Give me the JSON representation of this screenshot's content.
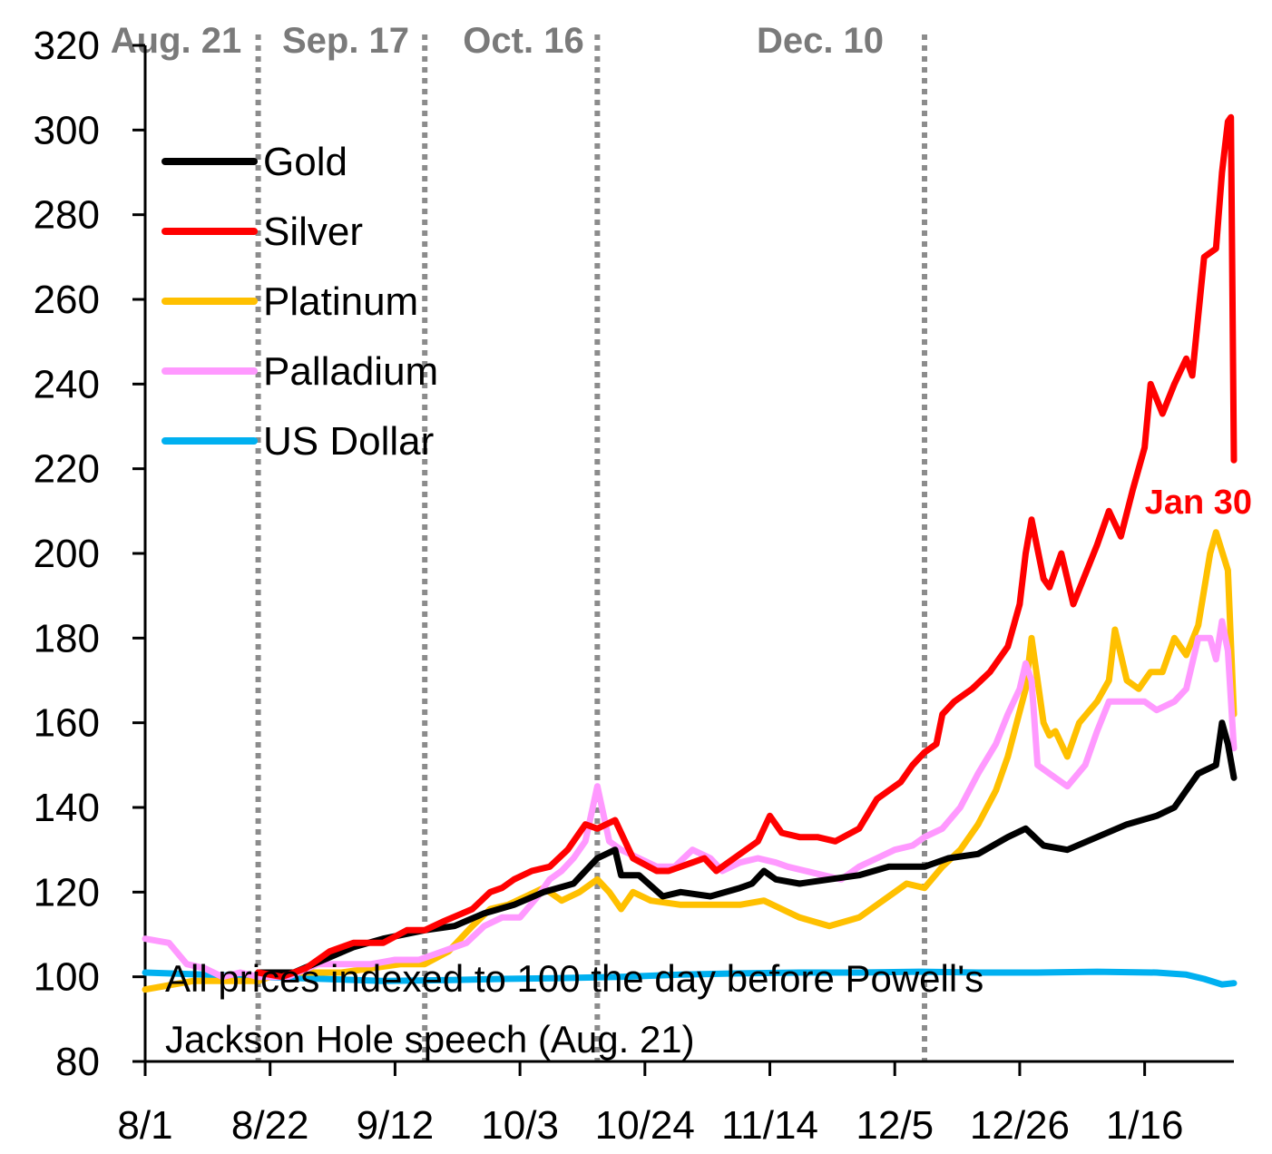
{
  "chart_data": {
    "type": "line",
    "title": "",
    "xlabel": "",
    "ylabel": "",
    "ylim": [
      80,
      320
    ],
    "y_ticks": [
      80,
      100,
      120,
      140,
      160,
      180,
      200,
      220,
      240,
      260,
      280,
      300,
      320
    ],
    "y_tick_labels": [
      "80",
      "100",
      "120",
      "140",
      "160",
      "180",
      "200",
      "220",
      "240",
      "260",
      "280",
      "300",
      "320"
    ],
    "x_range_days": [
      0,
      183
    ],
    "x_ticks": [
      {
        "day": 0,
        "label": "8/1"
      },
      {
        "day": 21,
        "label": "8/22"
      },
      {
        "day": 42,
        "label": "9/12"
      },
      {
        "day": 63,
        "label": "10/3"
      },
      {
        "day": 84,
        "label": "10/24"
      },
      {
        "day": 105,
        "label": "11/14"
      },
      {
        "day": 126,
        "label": "12/5"
      },
      {
        "day": 147,
        "label": "12/26"
      },
      {
        "day": 168,
        "label": "1/16"
      }
    ],
    "event_lines": [
      {
        "day": 19,
        "label": "Aug. 21"
      },
      {
        "day": 47,
        "label": "Sep. 17"
      },
      {
        "day": 76,
        "label": "Oct. 16"
      },
      {
        "day": 131,
        "label": "Dec. 10"
      }
    ],
    "legend": [
      "Gold",
      "Silver",
      "Platinum",
      "Palladium",
      "US Dollar"
    ],
    "note_lines": [
      "All prices indexed to 100 the day before Powell's",
      "Jackson Hole speech (Aug. 21)"
    ],
    "annotation": {
      "text": "Jan 30",
      "series": "Silver",
      "day": 182
    },
    "series": [
      {
        "name": "Gold",
        "color": "#000000",
        "points": [
          [
            19,
            101
          ],
          [
            25,
            101
          ],
          [
            30,
            104
          ],
          [
            35,
            107
          ],
          [
            40,
            109
          ],
          [
            47,
            111
          ],
          [
            52,
            112
          ],
          [
            57,
            115
          ],
          [
            62,
            117
          ],
          [
            67,
            120
          ],
          [
            72,
            122
          ],
          [
            76,
            128
          ],
          [
            79,
            130
          ],
          [
            80,
            124
          ],
          [
            83,
            124
          ],
          [
            87,
            119
          ],
          [
            90,
            120
          ],
          [
            95,
            119
          ],
          [
            100,
            121
          ],
          [
            102,
            122
          ],
          [
            104,
            125
          ],
          [
            106,
            123
          ],
          [
            110,
            122
          ],
          [
            115,
            123
          ],
          [
            120,
            124
          ],
          [
            125,
            126
          ],
          [
            130,
            126
          ],
          [
            131,
            126
          ],
          [
            135,
            128
          ],
          [
            140,
            129
          ],
          [
            145,
            133
          ],
          [
            148,
            135
          ],
          [
            151,
            131
          ],
          [
            155,
            130
          ],
          [
            160,
            133
          ],
          [
            165,
            136
          ],
          [
            170,
            138
          ],
          [
            173,
            140
          ],
          [
            175,
            144
          ],
          [
            177,
            148
          ],
          [
            180,
            150
          ],
          [
            181,
            160
          ],
          [
            182,
            155
          ],
          [
            183,
            147
          ]
        ]
      },
      {
        "name": "Silver",
        "color": "#ff0000",
        "points": [
          [
            19,
            101
          ],
          [
            23,
            100
          ],
          [
            27,
            102
          ],
          [
            31,
            106
          ],
          [
            35,
            108
          ],
          [
            40,
            108
          ],
          [
            44,
            111
          ],
          [
            47,
            111
          ],
          [
            50,
            113
          ],
          [
            55,
            116
          ],
          [
            58,
            120
          ],
          [
            60,
            121
          ],
          [
            62,
            123
          ],
          [
            65,
            125
          ],
          [
            68,
            126
          ],
          [
            71,
            130
          ],
          [
            74,
            136
          ],
          [
            76,
            135
          ],
          [
            79,
            137
          ],
          [
            82,
            128
          ],
          [
            86,
            125
          ],
          [
            88,
            125
          ],
          [
            90,
            126
          ],
          [
            94,
            128
          ],
          [
            96,
            125
          ],
          [
            100,
            129
          ],
          [
            103,
            132
          ],
          [
            105,
            138
          ],
          [
            107,
            134
          ],
          [
            110,
            133
          ],
          [
            113,
            133
          ],
          [
            116,
            132
          ],
          [
            120,
            135
          ],
          [
            123,
            142
          ],
          [
            125,
            144
          ],
          [
            127,
            146
          ],
          [
            129,
            150
          ],
          [
            131,
            153
          ],
          [
            133,
            155
          ],
          [
            134,
            162
          ],
          [
            136,
            165
          ],
          [
            139,
            168
          ],
          [
            142,
            172
          ],
          [
            145,
            178
          ],
          [
            147,
            188
          ],
          [
            148,
            200
          ],
          [
            149,
            208
          ],
          [
            151,
            194
          ],
          [
            152,
            192
          ],
          [
            154,
            200
          ],
          [
            156,
            188
          ],
          [
            158,
            195
          ],
          [
            160,
            202
          ],
          [
            162,
            210
          ],
          [
            164,
            204
          ],
          [
            166,
            215
          ],
          [
            168,
            225
          ],
          [
            169,
            240
          ],
          [
            171,
            233
          ],
          [
            173,
            240
          ],
          [
            175,
            246
          ],
          [
            176,
            242
          ],
          [
            178,
            270
          ],
          [
            180,
            272
          ],
          [
            181,
            290
          ],
          [
            182,
            302
          ],
          [
            182.5,
            303
          ],
          [
            183,
            222
          ]
        ]
      },
      {
        "name": "Platinum",
        "color": "#ffc000",
        "points": [
          [
            0,
            97
          ],
          [
            4,
            98
          ],
          [
            8,
            99
          ],
          [
            12,
            99
          ],
          [
            16,
            99
          ],
          [
            19,
            99
          ],
          [
            23,
            101
          ],
          [
            28,
            101
          ],
          [
            33,
            101
          ],
          [
            38,
            102
          ],
          [
            43,
            103
          ],
          [
            47,
            103
          ],
          [
            51,
            106
          ],
          [
            55,
            112
          ],
          [
            58,
            116
          ],
          [
            61,
            117
          ],
          [
            64,
            119
          ],
          [
            67,
            121
          ],
          [
            70,
            118
          ],
          [
            73,
            120
          ],
          [
            76,
            123
          ],
          [
            78,
            120
          ],
          [
            80,
            116
          ],
          [
            82,
            120
          ],
          [
            85,
            118
          ],
          [
            90,
            117
          ],
          [
            93,
            117
          ],
          [
            96,
            117
          ],
          [
            100,
            117
          ],
          [
            104,
            118
          ],
          [
            107,
            116
          ],
          [
            110,
            114
          ],
          [
            115,
            112
          ],
          [
            120,
            114
          ],
          [
            123,
            117
          ],
          [
            125,
            119
          ],
          [
            128,
            122
          ],
          [
            131,
            121
          ],
          [
            134,
            126
          ],
          [
            137,
            130
          ],
          [
            140,
            136
          ],
          [
            143,
            144
          ],
          [
            145,
            152
          ],
          [
            148,
            168
          ],
          [
            149,
            180
          ],
          [
            151,
            160
          ],
          [
            152,
            157
          ],
          [
            153,
            158
          ],
          [
            155,
            152
          ],
          [
            157,
            160
          ],
          [
            160,
            165
          ],
          [
            162,
            170
          ],
          [
            163,
            182
          ],
          [
            165,
            170
          ],
          [
            167,
            168
          ],
          [
            169,
            172
          ],
          [
            171,
            172
          ],
          [
            173,
            180
          ],
          [
            175,
            176
          ],
          [
            177,
            183
          ],
          [
            179,
            200
          ],
          [
            180,
            205
          ],
          [
            182,
            196
          ],
          [
            183,
            162
          ]
        ]
      },
      {
        "name": "Palladium",
        "color": "#ff99ff",
        "points": [
          [
            0,
            109
          ],
          [
            4,
            108
          ],
          [
            7,
            103
          ],
          [
            10,
            102
          ],
          [
            13,
            100
          ],
          [
            16,
            101
          ],
          [
            19,
            100
          ],
          [
            24,
            100
          ],
          [
            29,
            103
          ],
          [
            34,
            103
          ],
          [
            38,
            103
          ],
          [
            42,
            104
          ],
          [
            46,
            104
          ],
          [
            50,
            106
          ],
          [
            54,
            108
          ],
          [
            57,
            112
          ],
          [
            60,
            114
          ],
          [
            63,
            114
          ],
          [
            66,
            119
          ],
          [
            68,
            123
          ],
          [
            70,
            125
          ],
          [
            72,
            128
          ],
          [
            74,
            132
          ],
          [
            76,
            145
          ],
          [
            78,
            132
          ],
          [
            80,
            130
          ],
          [
            83,
            128
          ],
          [
            86,
            126
          ],
          [
            89,
            126
          ],
          [
            92,
            130
          ],
          [
            95,
            128
          ],
          [
            97,
            125
          ],
          [
            100,
            127
          ],
          [
            103,
            128
          ],
          [
            106,
            127
          ],
          [
            108,
            126
          ],
          [
            111,
            125
          ],
          [
            114,
            124
          ],
          [
            117,
            123
          ],
          [
            120,
            126
          ],
          [
            123,
            128
          ],
          [
            126,
            130
          ],
          [
            129,
            131
          ],
          [
            131,
            133
          ],
          [
            134,
            135
          ],
          [
            137,
            140
          ],
          [
            140,
            148
          ],
          [
            143,
            155
          ],
          [
            145,
            162
          ],
          [
            147,
            168
          ],
          [
            148,
            174
          ],
          [
            149,
            170
          ],
          [
            150,
            150
          ],
          [
            152,
            148
          ],
          [
            155,
            145
          ],
          [
            158,
            150
          ],
          [
            160,
            158
          ],
          [
            162,
            165
          ],
          [
            165,
            165
          ],
          [
            168,
            165
          ],
          [
            170,
            163
          ],
          [
            173,
            165
          ],
          [
            175,
            168
          ],
          [
            177,
            180
          ],
          [
            179,
            180
          ],
          [
            180,
            175
          ],
          [
            181,
            184
          ],
          [
            182,
            177
          ],
          [
            183,
            154
          ]
        ]
      },
      {
        "name": "US Dollar",
        "color": "#00b0f0",
        "points": [
          [
            0,
            101
          ],
          [
            10,
            100.5
          ],
          [
            19,
            100
          ],
          [
            30,
            99.5
          ],
          [
            40,
            99
          ],
          [
            50,
            99.2
          ],
          [
            60,
            99.5
          ],
          [
            70,
            99.7
          ],
          [
            80,
            100
          ],
          [
            90,
            100.5
          ],
          [
            100,
            100.8
          ],
          [
            110,
            101
          ],
          [
            120,
            101
          ],
          [
            130,
            101.2
          ],
          [
            140,
            101
          ],
          [
            150,
            101
          ],
          [
            160,
            101.2
          ],
          [
            170,
            101
          ],
          [
            175,
            100.5
          ],
          [
            178,
            99.5
          ],
          [
            181,
            98.2
          ],
          [
            183,
            98.5
          ]
        ]
      }
    ]
  }
}
